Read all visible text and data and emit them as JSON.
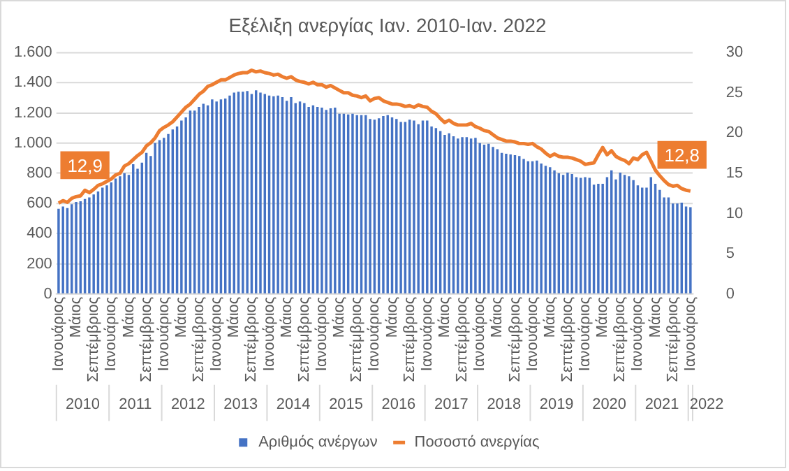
{
  "chart_data": {
    "type": "bar",
    "title": "Εξέλιξη ανεργίας Ιαν. 2010-Ιαν. 2022",
    "categories": [
      "Ιανουάριος",
      null,
      null,
      null,
      "Μάιος",
      null,
      null,
      null,
      "Σεπτέμβριος",
      null,
      null,
      null,
      "Ιανουάριος",
      null,
      null,
      null,
      "Μάιος",
      null,
      null,
      null,
      "Σεπτέμβριος",
      null,
      null,
      null,
      "Ιανουάριος",
      null,
      null,
      null,
      "Μάιος",
      null,
      null,
      null,
      "Σεπτέμβριος",
      null,
      null,
      null,
      "Ιανουάριος",
      null,
      null,
      null,
      "Μάιος",
      null,
      null,
      null,
      "Σεπτέμβριος",
      null,
      null,
      null,
      "Ιανουάριος",
      null,
      null,
      null,
      "Μάιος",
      null,
      null,
      null,
      "Σεπτέμβριος",
      null,
      null,
      null,
      "Ιανουάριος",
      null,
      null,
      null,
      "Μάιος",
      null,
      null,
      null,
      "Σεπτέμβριος",
      null,
      null,
      null,
      "Ιανουάριος",
      null,
      null,
      null,
      "Μάιος",
      null,
      null,
      null,
      "Σεπτέμβριος",
      null,
      null,
      null,
      "Ιανουάριος",
      null,
      null,
      null,
      "Μάιος",
      null,
      null,
      null,
      "Σεπτέμβριος",
      null,
      null,
      null,
      "Ιανουάριος",
      null,
      null,
      null,
      "Μάιος",
      null,
      null,
      null,
      "Σεπτέμβριος",
      null,
      null,
      null,
      "Ιανουάριος",
      null,
      null,
      null,
      "Μάιος",
      null,
      null,
      null,
      "Σεπτέμβριος",
      null,
      null,
      null,
      "Ιανουάριος",
      null,
      null,
      null,
      "Μάιος",
      null,
      null,
      null,
      "Σεπτέμβριος",
      null,
      null,
      null,
      "Ιανουάριος",
      null,
      null,
      null,
      "Μάιος",
      null,
      null,
      null,
      "Σεπτέμβριος",
      null,
      null,
      null,
      "Ιανουάριος"
    ],
    "series": [
      {
        "name": "Αριθμός ανέργων",
        "color": "#4472c4",
        "values": [
          565,
          580,
          570,
          595,
          610,
          615,
          630,
          640,
          660,
          680,
          705,
          720,
          740,
          765,
          780,
          800,
          790,
          860,
          830,
          870,
          935,
          915,
          1000,
          1020,
          1035,
          1060,
          1090,
          1110,
          1150,
          1170,
          1215,
          1215,
          1240,
          1260,
          1250,
          1290,
          1275,
          1290,
          1295,
          1315,
          1335,
          1340,
          1340,
          1345,
          1325,
          1350,
          1335,
          1325,
          1315,
          1310,
          1315,
          1305,
          1280,
          1305,
          1265,
          1275,
          1265,
          1240,
          1250,
          1240,
          1235,
          1220,
          1230,
          1235,
          1195,
          1195,
          1190,
          1195,
          1185,
          1185,
          1185,
          1160,
          1155,
          1165,
          1180,
          1185,
          1170,
          1160,
          1140,
          1140,
          1155,
          1150,
          1125,
          1150,
          1150,
          1110,
          1100,
          1080,
          1055,
          1065,
          1045,
          1030,
          1040,
          1040,
          1030,
          1035,
          1000,
          990,
          995,
          975,
          960,
          935,
          930,
          925,
          920,
          915,
          895,
          880,
          880,
          885,
          865,
          850,
          840,
          820,
          800,
          790,
          805,
          795,
          775,
          770,
          775,
          770,
          725,
          730,
          730,
          775,
          820,
          760,
          805,
          790,
          780,
          755,
          720,
          705,
          705,
          775,
          730,
          690,
          640,
          640,
          600,
          600,
          605,
          580,
          575
        ]
      },
      {
        "name": "Ποσοστό ανεργίας",
        "type": "line",
        "axis": "y2",
        "color": "#ed7d31",
        "values": [
          11.3,
          11.6,
          11.4,
          11.9,
          12.1,
          12.2,
          12.9,
          12.6,
          13.0,
          13.5,
          13.7,
          14.0,
          14.3,
          14.8,
          15.0,
          15.9,
          16.2,
          16.7,
          17.2,
          17.6,
          18.4,
          18.8,
          19.4,
          20.3,
          20.7,
          21.0,
          21.4,
          22.0,
          22.6,
          23.2,
          23.6,
          24.2,
          24.8,
          25.2,
          25.8,
          26.0,
          26.3,
          26.6,
          26.6,
          26.9,
          27.2,
          27.4,
          27.5,
          27.5,
          27.8,
          27.6,
          27.7,
          27.5,
          27.4,
          27.2,
          27.3,
          27.0,
          26.8,
          27.0,
          26.6,
          26.4,
          26.3,
          26.1,
          26.3,
          26.0,
          26.0,
          25.7,
          25.9,
          25.6,
          25.3,
          25.0,
          25.0,
          24.7,
          24.6,
          24.4,
          24.6,
          24.0,
          24.3,
          24.4,
          24.0,
          23.8,
          23.6,
          23.6,
          23.5,
          23.3,
          23.4,
          23.2,
          23.5,
          23.3,
          23.2,
          22.7,
          22.4,
          21.8,
          21.3,
          21.6,
          21.2,
          21.0,
          21.0,
          21.0,
          21.2,
          20.8,
          20.6,
          20.3,
          20.2,
          19.8,
          19.4,
          19.2,
          19.0,
          19.0,
          18.9,
          18.7,
          18.7,
          18.6,
          18.7,
          18.3,
          18.0,
          17.5,
          17.1,
          17.4,
          17.1,
          17.0,
          17.0,
          16.9,
          16.7,
          16.5,
          16.1,
          16.2,
          16.3,
          17.3,
          18.2,
          17.3,
          17.8,
          17.1,
          16.8,
          16.6,
          16.2,
          16.9,
          16.7,
          17.3,
          17.6,
          16.5,
          15.4,
          14.7,
          14.1,
          13.6,
          13.4,
          13.5,
          13.1,
          12.9,
          12.8
        ],
        "value_labels": [
          null,
          null,
          null,
          null,
          null,
          null,
          "12,9",
          null,
          null,
          null,
          null,
          null,
          null,
          null,
          null,
          null,
          null,
          null,
          null,
          null,
          null,
          null,
          null,
          null,
          null,
          null,
          null,
          null,
          null,
          null,
          null,
          null,
          null,
          null,
          null,
          null,
          null,
          null,
          null,
          null,
          null,
          null,
          null,
          null,
          null,
          null,
          null,
          null,
          null,
          null,
          null,
          null,
          null,
          null,
          null,
          null,
          null,
          null,
          null,
          null,
          null,
          null,
          null,
          null,
          null,
          null,
          null,
          null,
          null,
          null,
          null,
          null,
          null,
          null,
          null,
          null,
          null,
          null,
          null,
          null,
          null,
          null,
          null,
          null,
          null,
          null,
          null,
          null,
          null,
          null,
          null,
          null,
          null,
          null,
          null,
          null,
          null,
          null,
          null,
          null,
          null,
          null,
          null,
          null,
          null,
          null,
          null,
          null,
          null,
          null,
          null,
          null,
          null,
          null,
          null,
          null,
          null,
          null,
          null,
          null,
          null,
          null,
          null,
          null,
          null,
          null,
          null,
          null,
          null,
          null,
          null,
          null,
          null,
          null,
          null,
          null,
          null,
          null,
          null,
          null,
          null,
          null,
          null,
          null,
          "12,8"
        ]
      }
    ],
    "ylim": [
      0,
      1600
    ],
    "yticks": [
      0,
      200,
      400,
      600,
      800,
      {
        "value": 1000,
        "label": "1.000"
      },
      {
        "value": 1200,
        "label": "1.200"
      },
      {
        "value": 1400,
        "label": "1.400"
      },
      {
        "value": 1600,
        "label": "1.600"
      }
    ],
    "y2lim": [
      0,
      30
    ],
    "y2ticks": [
      0,
      5,
      10,
      15,
      20,
      25,
      30
    ],
    "annotations": [
      "2010",
      "2011",
      "2012",
      "2013",
      "2014",
      "2015",
      "2016",
      "2017",
      "2018",
      "2019",
      "2020",
      "2021",
      "2022"
    ],
    "grid": "y",
    "legend": "bottom"
  }
}
